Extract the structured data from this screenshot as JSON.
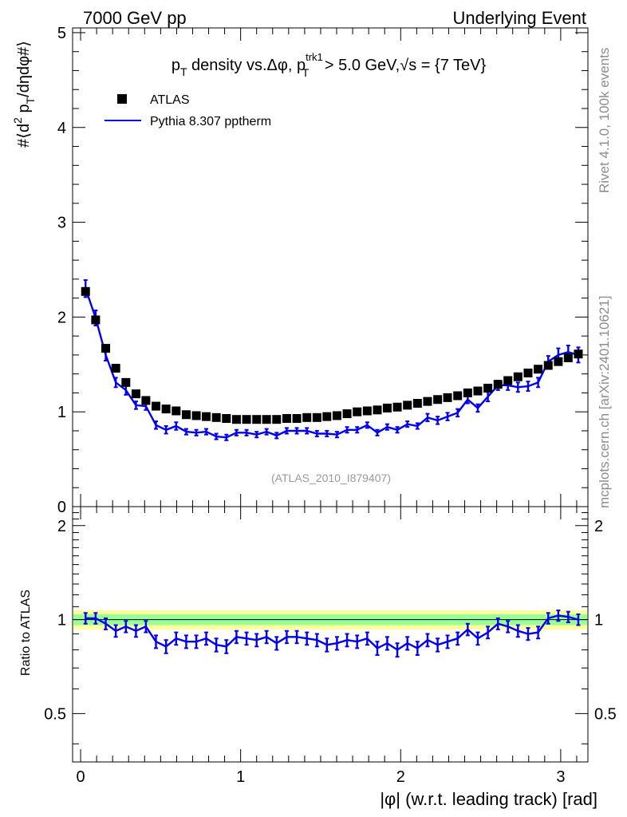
{
  "header": {
    "left": "7000 GeV pp",
    "right": "Underlying Event"
  },
  "side": {
    "rivet": "Rivet 4.1.0,  100k events",
    "mcplots": "mcplots.cern.ch [arXiv:2401.10621]"
  },
  "chart_data": [
    {
      "type": "scatter",
      "title": "p_T density vs.Δφ, p_T^trk1 > 5.0 GeV,√s = {7 TeV}",
      "title_parts": {
        "p": "p",
        "sub1": "T",
        "mid": " density vs.Δφ, p",
        "sup": "trk1",
        "sub2": "T",
        "tail": " > 5.0 GeV,",
        "sqrt": "√",
        "end": "s = {7 TeV}"
      },
      "ylabel": "#⟨d² p_T/dηdφ#⟩",
      "ylabel_parts": {
        "a": "#⟨d",
        "sup": "2",
        "b": " p",
        "sub": "T",
        "c": "/dηdφ#⟩"
      },
      "annotation": "(ATLAS_2010_I879407)",
      "xlim": [
        -0.05,
        3.17
      ],
      "ylim": [
        0,
        5.05
      ],
      "yticks": [
        0,
        1,
        2,
        3,
        4,
        5
      ],
      "yticklabels": [
        "0",
        "1",
        "2",
        "3",
        "4",
        "5"
      ],
      "legend": [
        {
          "label": "ATLAS",
          "marker": "square",
          "color": "#000000"
        },
        {
          "label": "Pythia 8.307 pptherm",
          "marker": "line",
          "color": "#0000ee"
        }
      ],
      "x": [
        0.031,
        0.094,
        0.157,
        0.22,
        0.283,
        0.346,
        0.408,
        0.471,
        0.534,
        0.597,
        0.66,
        0.723,
        0.785,
        0.848,
        0.911,
        0.974,
        1.037,
        1.1,
        1.162,
        1.225,
        1.288,
        1.351,
        1.414,
        1.477,
        1.539,
        1.602,
        1.665,
        1.728,
        1.791,
        1.854,
        1.916,
        1.979,
        2.042,
        2.105,
        2.168,
        2.231,
        2.293,
        2.356,
        2.419,
        2.482,
        2.545,
        2.608,
        2.67,
        2.733,
        2.796,
        2.859,
        2.922,
        2.985,
        3.047,
        3.11
      ],
      "series": [
        {
          "name": "ATLAS",
          "values": [
            2.27,
            1.97,
            1.67,
            1.46,
            1.31,
            1.19,
            1.12,
            1.06,
            1.03,
            1.01,
            0.97,
            0.96,
            0.95,
            0.94,
            0.93,
            0.92,
            0.92,
            0.92,
            0.92,
            0.92,
            0.93,
            0.93,
            0.94,
            0.94,
            0.95,
            0.96,
            0.98,
            1.0,
            1.01,
            1.02,
            1.04,
            1.05,
            1.07,
            1.09,
            1.11,
            1.13,
            1.15,
            1.17,
            1.2,
            1.22,
            1.25,
            1.29,
            1.33,
            1.37,
            1.41,
            1.45,
            1.49,
            1.53,
            1.57,
            1.61
          ],
          "errors": [
            0.03,
            0.03,
            0.02,
            0.02,
            0.02,
            0.02,
            0.01,
            0.01,
            0.01,
            0.01,
            0.01,
            0.01,
            0.01,
            0.01,
            0.01,
            0.01,
            0.01,
            0.01,
            0.01,
            0.01,
            0.01,
            0.01,
            0.01,
            0.01,
            0.01,
            0.01,
            0.01,
            0.01,
            0.01,
            0.01,
            0.01,
            0.01,
            0.01,
            0.01,
            0.01,
            0.01,
            0.01,
            0.01,
            0.01,
            0.01,
            0.01,
            0.01,
            0.01,
            0.01,
            0.01,
            0.01,
            0.01,
            0.01,
            0.01,
            0.02
          ]
        },
        {
          "name": "Pythia 8.307 pptherm",
          "values": [
            2.3,
            1.99,
            1.6,
            1.31,
            1.23,
            1.07,
            1.06,
            0.86,
            0.81,
            0.85,
            0.79,
            0.78,
            0.79,
            0.74,
            0.73,
            0.78,
            0.78,
            0.76,
            0.79,
            0.75,
            0.8,
            0.8,
            0.8,
            0.77,
            0.77,
            0.76,
            0.81,
            0.81,
            0.86,
            0.78,
            0.84,
            0.81,
            0.87,
            0.85,
            0.94,
            0.91,
            0.95,
            0.99,
            1.13,
            1.04,
            1.16,
            1.28,
            1.28,
            1.26,
            1.27,
            1.31,
            1.53,
            1.6,
            1.63,
            1.6
          ],
          "errors": [
            0.09,
            0.08,
            0.06,
            0.05,
            0.05,
            0.04,
            0.04,
            0.04,
            0.04,
            0.04,
            0.03,
            0.03,
            0.03,
            0.03,
            0.03,
            0.03,
            0.03,
            0.03,
            0.03,
            0.03,
            0.03,
            0.03,
            0.03,
            0.03,
            0.03,
            0.03,
            0.03,
            0.03,
            0.03,
            0.03,
            0.03,
            0.03,
            0.03,
            0.03,
            0.04,
            0.04,
            0.04,
            0.04,
            0.04,
            0.04,
            0.05,
            0.05,
            0.05,
            0.05,
            0.05,
            0.05,
            0.06,
            0.07,
            0.07,
            0.08
          ]
        }
      ]
    },
    {
      "type": "line",
      "ylabel": "Ratio to ATLAS",
      "xlabel": "|φ| (w.r.t. leading track) [rad]",
      "xlabel_parts": {
        "bar1": "|",
        "phi": "φ",
        "bar2": "|",
        "rest": " (w.r.t. leading track) [rad]"
      },
      "xlim": [
        -0.05,
        3.17
      ],
      "ylim": [
        0.35,
        2.3
      ],
      "xticks": [
        0,
        1,
        2,
        3
      ],
      "xticklabels": [
        "0",
        "1",
        "2",
        "3"
      ],
      "yticks": [
        0.5,
        1,
        2
      ],
      "yticklabels": [
        "0.5",
        "1",
        "2"
      ],
      "band_inner": 0.04,
      "band_outer": 0.07,
      "series": [
        {
          "name": "Pythia 8.307 pptherm / ATLAS",
          "values": [
            1.01,
            1.01,
            0.97,
            0.92,
            0.95,
            0.92,
            0.95,
            0.85,
            0.82,
            0.87,
            0.85,
            0.85,
            0.87,
            0.83,
            0.82,
            0.88,
            0.87,
            0.86,
            0.88,
            0.84,
            0.88,
            0.88,
            0.87,
            0.86,
            0.83,
            0.84,
            0.86,
            0.85,
            0.87,
            0.81,
            0.84,
            0.8,
            0.84,
            0.81,
            0.86,
            0.83,
            0.85,
            0.87,
            0.93,
            0.87,
            0.91,
            0.97,
            0.95,
            0.92,
            0.9,
            0.91,
            1.01,
            1.03,
            1.02,
            1.0
          ],
          "errors": [
            0.04,
            0.04,
            0.04,
            0.04,
            0.04,
            0.04,
            0.04,
            0.04,
            0.04,
            0.04,
            0.04,
            0.04,
            0.04,
            0.04,
            0.04,
            0.04,
            0.04,
            0.04,
            0.04,
            0.04,
            0.04,
            0.04,
            0.04,
            0.04,
            0.04,
            0.04,
            0.04,
            0.04,
            0.04,
            0.04,
            0.04,
            0.04,
            0.04,
            0.04,
            0.04,
            0.04,
            0.04,
            0.04,
            0.04,
            0.04,
            0.04,
            0.04,
            0.04,
            0.04,
            0.04,
            0.04,
            0.04,
            0.04,
            0.04,
            0.04
          ]
        }
      ]
    }
  ],
  "colors": {
    "mc": "#0000ee",
    "data": "#000000",
    "band_inner": "#99ff99",
    "band_outer": "#ffff99",
    "side_text": "#8c8c8c",
    "annotation": "#999999"
  }
}
